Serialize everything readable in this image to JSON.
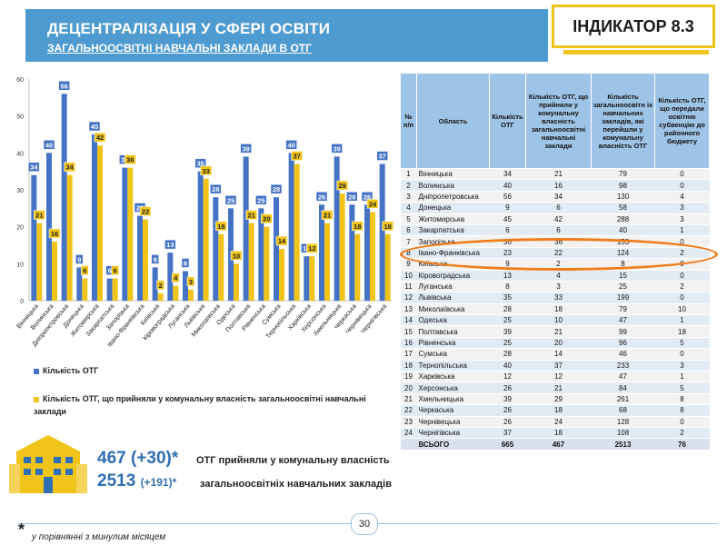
{
  "header": {
    "title": "ДЕЦЕНТРАЛІЗАЦІЯ У СФЕРІ ОСВІТИ",
    "subtitle": "ЗАГАЛЬНООСВІТНІ НАВЧАЛЬНІ ЗАКЛАДИ В ОТГ",
    "indicator": "ІНДИКАТОР 8.3",
    "band_color": "#4e9bd1",
    "indicator_accent": "#f0c419"
  },
  "chart_data": {
    "type": "bar",
    "categories": [
      "Вінницька",
      "Волинська",
      "Дніпропетровська",
      "Донецька",
      "Житомирська",
      "Закарпатська",
      "Запорізька",
      "Івано-Франківська",
      "Київська",
      "Кіровоградська",
      "Луганська",
      "Львівська",
      "Миколаївська",
      "Одеська",
      "Полтавська",
      "Рівненська",
      "Сумська",
      "Тернопільська",
      "Харківська",
      "Херсонська",
      "Хмельницька",
      "Черкаська",
      "Чернівецька",
      "Чернігівська"
    ],
    "series": [
      {
        "name": "Кількість  ОТГ",
        "color": "#4472c4",
        "values": [
          34,
          40,
          56,
          9,
          45,
          6,
          36,
          23,
          9,
          13,
          8,
          35,
          28,
          25,
          39,
          25,
          28,
          40,
          12,
          26,
          39,
          26,
          26,
          37
        ]
      },
      {
        "name": "Кількість  ОТГ,  що  прийняли  у  комунальну  власність  загальноосвітні  навчальні  заклади",
        "color": "#f0c419",
        "values": [
          21,
          16,
          34,
          6,
          42,
          6,
          36,
          22,
          2,
          4,
          3,
          33,
          18,
          10,
          21,
          20,
          14,
          37,
          12,
          21,
          29,
          18,
          24,
          18
        ]
      }
    ],
    "ylim": [
      0,
      60
    ],
    "yticks": [
      0,
      10,
      20,
      30,
      40,
      50,
      60
    ],
    "grid": false,
    "legend_placement": "bottom"
  },
  "table": {
    "headers": [
      "№ п/п",
      "Область",
      "Кількість ОТГ",
      "Кількість ОТГ, що прийняли у комунальну власність загальноосвітні навчальні заклади",
      "Кількість загальноосвітн іх навчальних закладів, які перейшли у комунальну власність ОТГ",
      "Кількість ОТГ, що передали освітню субвенцію до районного бюджету"
    ],
    "rows": [
      [
        "1",
        "Вінницька",
        "34",
        "21",
        "79",
        "0"
      ],
      [
        "2",
        "Волинська",
        "40",
        "16",
        "98",
        "0"
      ],
      [
        "3",
        "Дніпропетровська",
        "56",
        "34",
        "130",
        "4"
      ],
      [
        "4",
        "Донецька",
        "9",
        "6",
        "58",
        "3"
      ],
      [
        "5",
        "Житомирська",
        "45",
        "42",
        "288",
        "3"
      ],
      [
        "6",
        "Закарпатська",
        "6",
        "6",
        "40",
        "1"
      ],
      [
        "7",
        "Запорізька",
        "36",
        "36",
        "153",
        "0"
      ],
      [
        "8",
        "Івано-Франківська",
        "23",
        "22",
        "124",
        "2"
      ],
      [
        "9",
        "Київська",
        "9",
        "2",
        "8",
        "0"
      ],
      [
        "10",
        "Кіровоградська",
        "13",
        "4",
        "15",
        "0"
      ],
      [
        "11",
        "Луганська",
        "8",
        "3",
        "25",
        "2"
      ],
      [
        "12",
        "Львівська",
        "35",
        "33",
        "199",
        "0"
      ],
      [
        "13",
        "Миколаївська",
        "28",
        "18",
        "79",
        "10"
      ],
      [
        "14",
        "Одеська",
        "25",
        "10",
        "47",
        "1"
      ],
      [
        "15",
        "Полтавська",
        "39",
        "21",
        "99",
        "18"
      ],
      [
        "16",
        "Рівненська",
        "25",
        "20",
        "96",
        "5"
      ],
      [
        "17",
        "Сумська",
        "28",
        "14",
        "46",
        "0"
      ],
      [
        "18",
        "Тернопільська",
        "40",
        "37",
        "233",
        "3"
      ],
      [
        "19",
        "Харківська",
        "12",
        "12",
        "47",
        "1"
      ],
      [
        "20",
        "Херсонська",
        "26",
        "21",
        "84",
        "5"
      ],
      [
        "21",
        "Хмельницька",
        "39",
        "29",
        "261",
        "8"
      ],
      [
        "22",
        "Черкаська",
        "26",
        "18",
        "68",
        "8"
      ],
      [
        "23",
        "Чернівецька",
        "26",
        "24",
        "128",
        "0"
      ],
      [
        "24",
        "Чернігівська",
        "37",
        "18",
        "108",
        "2"
      ]
    ],
    "total": [
      "",
      "ВСЬОГО",
      "665",
      "467",
      "2513",
      "76"
    ],
    "highlight_color": "#ef7d1a"
  },
  "summary": {
    "line1_value": "467",
    "line1_delta": "(+30)*",
    "line1_text": "ОТГ прийняли у комунальну власність",
    "line2_value": "2513",
    "line2_delta": "(+191)*",
    "line2_text": "загальноосвітніх навчальних закладів",
    "icon": "school-building-icon"
  },
  "footer": {
    "page_number": "30",
    "star": "*",
    "note": "у порівнянні з минулим місяцем"
  }
}
